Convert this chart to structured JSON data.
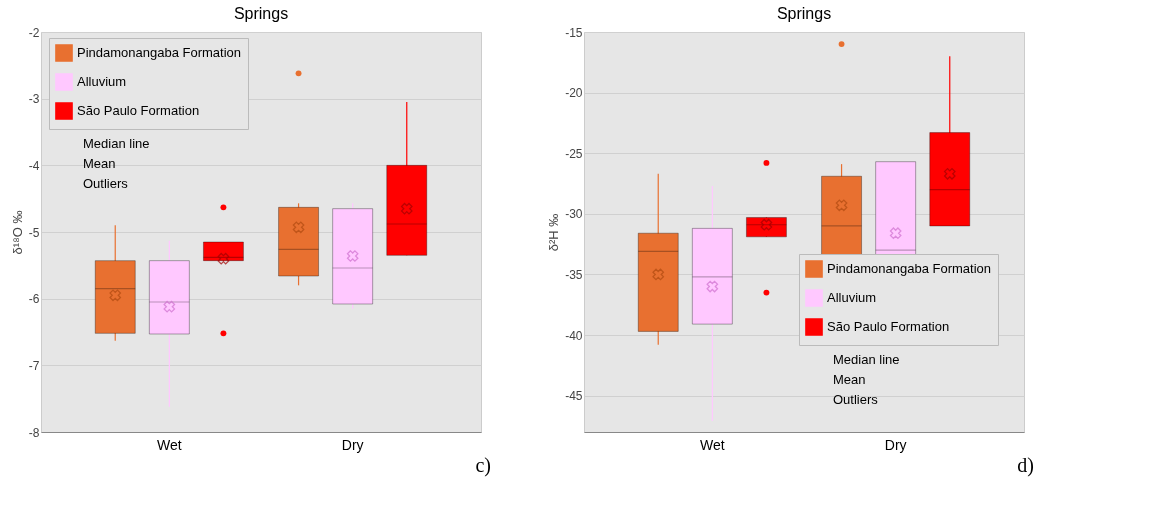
{
  "chart_data": [
    {
      "type": "box",
      "title": "Springs",
      "ylabel": "δ¹⁸O ‰",
      "categories": [
        "Wet",
        "Dry"
      ],
      "ylim": [
        -8,
        -2
      ],
      "yticks": [
        -8,
        -7,
        -6,
        -5,
        -4,
        -3,
        -2
      ],
      "grid": "y",
      "legend": "top left",
      "annotations": [
        "Median line",
        "Mean",
        "Outliers",
        "c)"
      ],
      "series": [
        {
          "name": "Pindamonangaba Formation",
          "color": "#e87030",
          "boxes": [
            {
              "low": -6.63,
              "q1": -6.52,
              "median": -5.85,
              "q3": -5.43,
              "high": -4.9,
              "mean": -5.95
            },
            {
              "low": -5.8,
              "q1": -5.66,
              "median": -5.26,
              "q3": -4.63,
              "high": -4.57,
              "mean": -4.93,
              "outliers": [
                -2.62
              ]
            }
          ]
        },
        {
          "name": "Alluvium",
          "color": "#ffc8ff",
          "boxes": [
            {
              "low": -7.62,
              "q1": -6.53,
              "median": -6.05,
              "q3": -5.43,
              "high": -5.13,
              "mean": -6.12
            },
            {
              "low": -6.15,
              "q1": -6.08,
              "median": -5.54,
              "q3": -4.65,
              "high": -4.57,
              "mean": -5.36
            }
          ]
        },
        {
          "name": "São Paulo Formation",
          "color": "#ff0000",
          "boxes": [
            {
              "low": -5.43,
              "q1": -5.43,
              "median": -5.38,
              "q3": -5.15,
              "high": -5.15,
              "mean": -5.4,
              "outliers": [
                -4.63,
                -6.52
              ]
            },
            {
              "low": -5.35,
              "q1": -5.35,
              "median": -4.88,
              "q3": -4.0,
              "high": -3.05,
              "mean": -4.65
            }
          ]
        }
      ]
    },
    {
      "type": "box",
      "title": "Springs",
      "ylabel": "δ²H ‰",
      "categories": [
        "Wet",
        "Dry"
      ],
      "ylim": [
        -48,
        -15
      ],
      "yticks": [
        -45,
        -40,
        -35,
        -30,
        -25,
        -20,
        -15
      ],
      "grid": "y",
      "legend": "bottom right",
      "annotations": [
        "Median line",
        "Mean",
        "Outliers",
        "d)"
      ],
      "series": [
        {
          "name": "Pindamonangaba Formation",
          "color": "#e87030",
          "boxes": [
            {
              "low": -40.8,
              "q1": -39.7,
              "median": -33.1,
              "q3": -31.6,
              "high": -26.7,
              "mean": -35.0
            },
            {
              "low": -34.8,
              "q1": -34.0,
              "median": -31.0,
              "q3": -26.9,
              "high": -25.9,
              "mean": -29.3,
              "outliers": [
                -16.0
              ]
            }
          ]
        },
        {
          "name": "Alluvium",
          "color": "#ffc8ff",
          "boxes": [
            {
              "low": -47.1,
              "q1": -39.1,
              "median": -35.2,
              "q3": -31.2,
              "high": -27.7,
              "mean": -36.0
            },
            {
              "low": -37.2,
              "q1": -36.4,
              "median": -33.0,
              "q3": -25.7,
              "high": -25.7,
              "mean": -31.6
            }
          ]
        },
        {
          "name": "São Paulo Formation",
          "color": "#ff0000",
          "boxes": [
            {
              "low": -31.9,
              "q1": -31.9,
              "median": -30.9,
              "q3": -30.3,
              "high": -30.3,
              "mean": -30.9,
              "outliers": [
                -25.8,
                -36.5
              ]
            },
            {
              "low": -31.0,
              "q1": -31.0,
              "median": -28.0,
              "q3": -23.3,
              "high": -17.0,
              "mean": -26.7
            }
          ]
        }
      ]
    }
  ]
}
